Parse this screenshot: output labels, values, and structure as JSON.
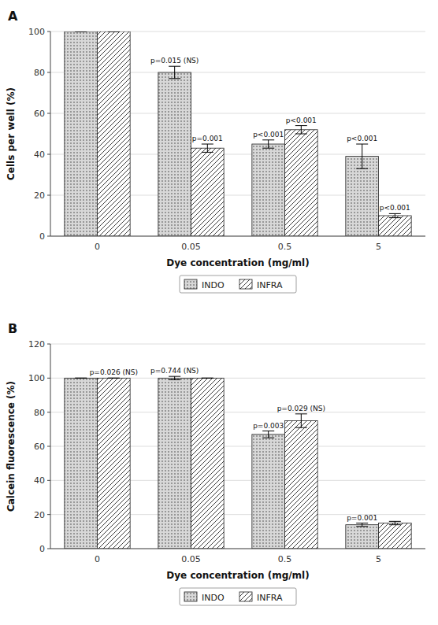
{
  "chart_data": [
    {
      "type": "bar",
      "title": "A",
      "xlabel": "Dye concentration (mg/ml)",
      "ylabel": "Cells per well (%)",
      "categories": [
        "0",
        "0.05",
        "0.5",
        "5"
      ],
      "series": [
        {
          "name": "INDO",
          "color": "#d8d8d8",
          "values": [
            100,
            80,
            45,
            39
          ],
          "errors": [
            0,
            3,
            2,
            6
          ]
        },
        {
          "name": "INFRA",
          "color": "#ffffff",
          "values": [
            100,
            43,
            52,
            10
          ],
          "errors": [
            0,
            2,
            2,
            1
          ]
        }
      ],
      "annotations": [
        {
          "text": "p=0.015 (NS)",
          "series": "INDO",
          "category": "0.05"
        },
        {
          "text": "p<0.001",
          "series": "INDO",
          "category": "0.5"
        },
        {
          "text": "p<0.001",
          "series": "INDO",
          "category": "5"
        },
        {
          "text": "p=0.001",
          "series": "INFRA",
          "category": "0.05"
        },
        {
          "text": "p<0.001",
          "series": "INFRA",
          "category": "0.5"
        },
        {
          "text": "p<0.001",
          "series": "INFRA",
          "category": "5"
        }
      ],
      "ylim": [
        0,
        100
      ],
      "yticks": [
        0,
        20,
        40,
        60,
        80,
        100
      ],
      "grid": true,
      "legend": "bottom"
    },
    {
      "type": "bar",
      "title": "B",
      "xlabel": "Dye concentration (mg/ml)",
      "ylabel": "Calcein fluorescence (%)",
      "categories": [
        "0",
        "0.05",
        "0.5",
        "5"
      ],
      "series": [
        {
          "name": "INDO",
          "color": "#d8d8d8",
          "values": [
            100,
            100,
            67,
            14
          ],
          "errors": [
            0,
            1,
            2,
            1
          ]
        },
        {
          "name": "INFRA",
          "color": "#ffffff",
          "values": [
            100,
            100,
            75,
            15
          ],
          "errors": [
            0,
            0,
            4,
            1
          ]
        }
      ],
      "annotations": [
        {
          "text": "p=0.744 (NS)",
          "series": "INDO",
          "category": "0.05"
        },
        {
          "text": "p=0.003",
          "series": "INDO",
          "category": "0.5"
        },
        {
          "text": "p=0.001",
          "series": "INDO",
          "category": "5"
        },
        {
          "text": "p=0.026 (NS)",
          "series": "INFRA",
          "category": "0"
        },
        {
          "text": "p=0.029 (NS)",
          "series": "INFRA",
          "category": "0.5"
        }
      ],
      "ylim": [
        0,
        120
      ],
      "yticks": [
        0,
        20,
        40,
        60,
        80,
        100,
        120
      ],
      "grid": true,
      "legend": "bottom"
    }
  ]
}
